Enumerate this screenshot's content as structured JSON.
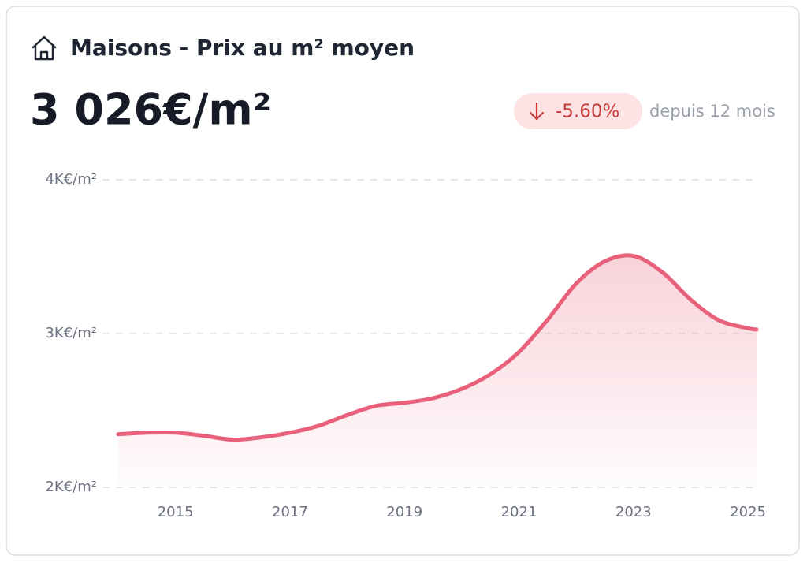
{
  "header": {
    "title": "Maisons - Prix au m² moyen",
    "value": "3 026€/m²",
    "change": "-5.60%",
    "change_note": "depuis 12 mois"
  },
  "chart_data": {
    "type": "line",
    "x": [
      2014,
      2014.5,
      2015,
      2015.5,
      2016,
      2016.5,
      2017,
      2017.5,
      2018,
      2018.5,
      2019,
      2019.5,
      2020,
      2020.5,
      2021,
      2021.5,
      2022,
      2022.5,
      2023,
      2023.5,
      2024,
      2024.5,
      2025,
      2025.15
    ],
    "series": [
      {
        "color": "#e8607a",
        "values": [
          2345,
          2355,
          2355,
          2335,
          2310,
          2325,
          2355,
          2400,
          2470,
          2530,
          2550,
          2580,
          2640,
          2735,
          2880,
          3090,
          3325,
          3470,
          3505,
          3400,
          3220,
          3085,
          3035,
          3026
        ]
      }
    ],
    "xlim": [
      2014,
      2025.15
    ],
    "xticks": [
      2015,
      2017,
      2019,
      2021,
      2023,
      2025
    ],
    "ylim": [
      2000,
      4000
    ],
    "yticks": [
      {
        "value": 2000,
        "label": "2K€/m²"
      },
      {
        "value": 3000,
        "label": "3K€/m²"
      },
      {
        "value": 4000,
        "label": "4K€/m²"
      }
    ],
    "grid": true
  }
}
